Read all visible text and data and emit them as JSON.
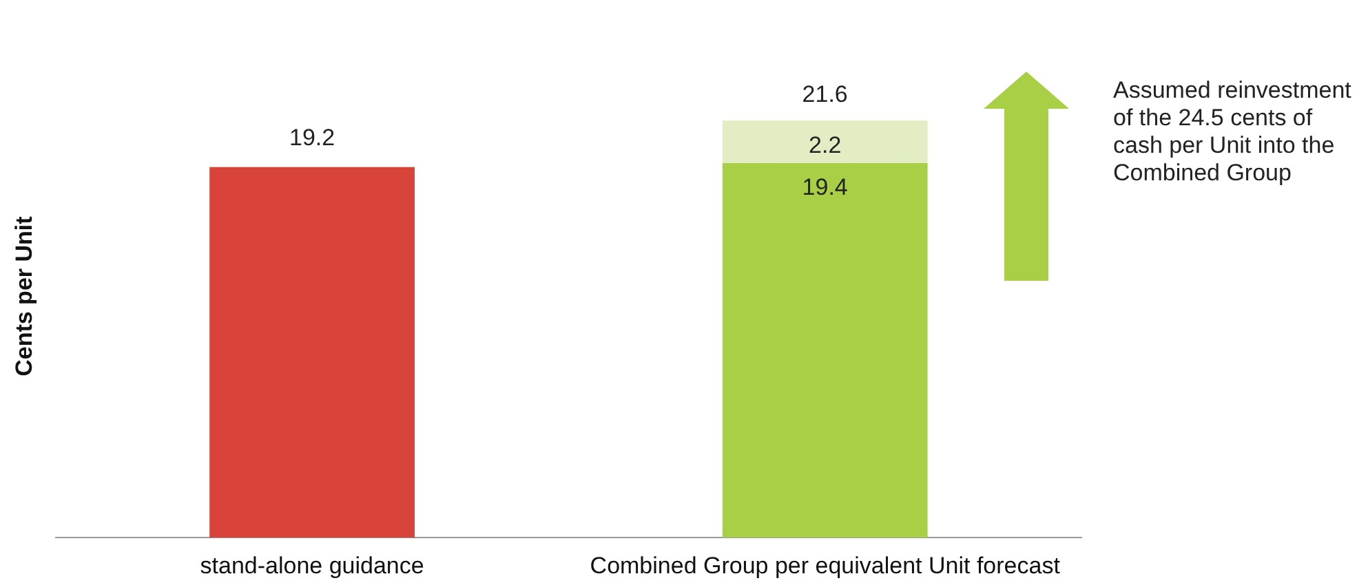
{
  "chart_data": {
    "type": "bar",
    "ylabel": "Cents per Unit",
    "categories": [
      "stand-alone guidance",
      "Combined Group per equivalent Unit forecast"
    ],
    "stacked": true,
    "series": [
      {
        "colors": [
          "#d9443a",
          "#a8cf45"
        ],
        "values": [
          19.2,
          19.4
        ]
      },
      {
        "color": "#e2edc3",
        "values": [
          null,
          2.2
        ]
      }
    ],
    "totals": [
      null,
      "21.6"
    ],
    "data_labels": true,
    "grid": false,
    "legend": false,
    "tick_labels": "x",
    "annotations": [
      "Assumed reinvestment of the 24.5 cents of cash per Unit into the Combined Group"
    ]
  }
}
